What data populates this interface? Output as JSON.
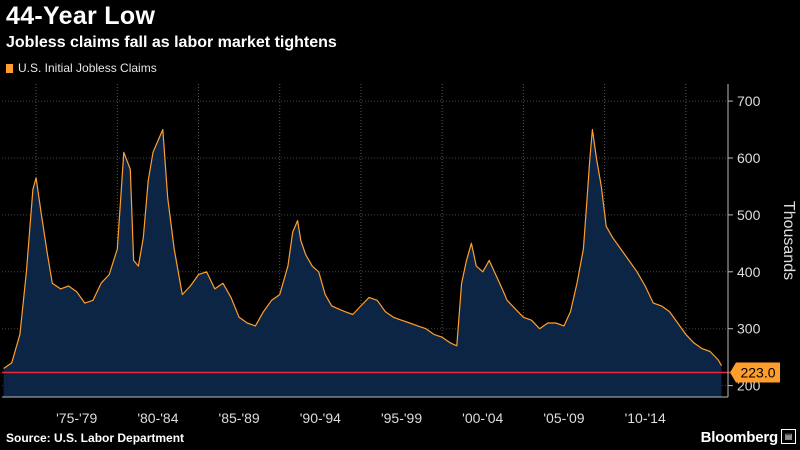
{
  "chart_data": {
    "type": "area",
    "title": "44-Year Low",
    "subtitle": "Jobless claims fall as labor market tightens",
    "series": [
      {
        "name": "U.S. Initial Jobless Claims",
        "x": [
          1973.0,
          1973.5,
          1974.0,
          1974.4,
          1974.8,
          1975.0,
          1975.3,
          1975.7,
          1976.0,
          1976.5,
          1977.0,
          1977.5,
          1978.0,
          1978.5,
          1979.0,
          1979.5,
          1980.0,
          1980.4,
          1980.8,
          1981.0,
          1981.3,
          1981.6,
          1981.9,
          1982.2,
          1982.5,
          1982.8,
          1983.1,
          1983.5,
          1984.0,
          1984.5,
          1985.0,
          1985.5,
          1986.0,
          1986.5,
          1987.0,
          1987.5,
          1988.0,
          1988.5,
          1989.0,
          1989.5,
          1990.0,
          1990.5,
          1990.8,
          1991.1,
          1991.3,
          1991.6,
          1992.0,
          1992.4,
          1992.8,
          1993.2,
          1993.6,
          1994.0,
          1994.5,
          1995.0,
          1995.5,
          1996.0,
          1996.5,
          1997.0,
          1997.5,
          1998.0,
          1998.5,
          1999.0,
          1999.5,
          2000.0,
          2000.5,
          2000.9,
          2001.2,
          2001.5,
          2001.8,
          2002.1,
          2002.5,
          2002.9,
          2003.3,
          2003.7,
          2004.0,
          2004.5,
          2005.0,
          2005.5,
          2006.0,
          2006.5,
          2007.0,
          2007.5,
          2007.9,
          2008.3,
          2008.7,
          2008.9,
          2009.1,
          2009.25,
          2009.5,
          2009.8,
          2010.1,
          2010.5,
          2011.0,
          2011.5,
          2012.0,
          2012.5,
          2013.0,
          2013.5,
          2014.0,
          2014.5,
          2015.0,
          2015.5,
          2016.0,
          2016.5,
          2017.0,
          2017.2
        ],
        "values": [
          230,
          240,
          290,
          400,
          545,
          565,
          505,
          430,
          380,
          370,
          375,
          365,
          345,
          350,
          380,
          395,
          440,
          610,
          580,
          420,
          410,
          460,
          560,
          610,
          630,
          650,
          530,
          440,
          360,
          375,
          395,
          400,
          370,
          380,
          355,
          320,
          310,
          305,
          330,
          350,
          360,
          410,
          470,
          490,
          455,
          430,
          410,
          400,
          360,
          340,
          335,
          330,
          325,
          340,
          355,
          350,
          330,
          320,
          315,
          310,
          305,
          300,
          290,
          285,
          275,
          270,
          380,
          420,
          450,
          410,
          400,
          420,
          395,
          370,
          350,
          335,
          320,
          315,
          300,
          310,
          310,
          305,
          330,
          380,
          440,
          520,
          600,
          650,
          600,
          550,
          480,
          460,
          440,
          420,
          400,
          375,
          345,
          340,
          330,
          310,
          290,
          275,
          265,
          260,
          245,
          235
        ]
      }
    ],
    "xlabel": "",
    "ylabel": "Thousands",
    "ylim": [
      180,
      730
    ],
    "yticks": [
      200,
      300,
      400,
      500,
      600,
      700
    ],
    "xlim": [
      1972.9,
      2017.6
    ],
    "x_period_labels": [
      {
        "label": "'75-'79",
        "from": 1975,
        "to": 1980
      },
      {
        "label": "'80-'84",
        "from": 1980,
        "to": 1985
      },
      {
        "label": "'85-'89",
        "from": 1985,
        "to": 1990
      },
      {
        "label": "'90-'94",
        "from": 1990,
        "to": 1995
      },
      {
        "label": "'95-'99",
        "from": 1995,
        "to": 2000
      },
      {
        "label": "'00-'04",
        "from": 2000,
        "to": 2005
      },
      {
        "label": "'05-'09",
        "from": 2005,
        "to": 2010
      },
      {
        "label": "'10-'14",
        "from": 2010,
        "to": 2015
      }
    ],
    "reference_line": {
      "value": 223.0,
      "label": "223.0",
      "color": "#e8283c"
    },
    "grid": true,
    "legend_position": "top-left",
    "colors": {
      "line": "#ff9e2c",
      "fill": "#0c2545",
      "background": "#000000"
    }
  },
  "source": "Source: U.S. Labor Department",
  "brand": "Bloomberg"
}
